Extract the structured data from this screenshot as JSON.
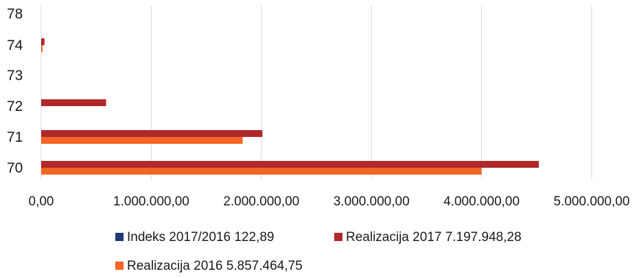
{
  "chart_data": {
    "type": "bar",
    "orientation": "horizontal",
    "categories": [
      "70",
      "71",
      "72",
      "73",
      "74",
      "78"
    ],
    "series": [
      {
        "name": "Indeks 2017/2016 122,89",
        "color": "#1f3a78",
        "values": [
          null,
          null,
          null,
          null,
          null,
          null
        ]
      },
      {
        "name": "Realizacija 2017 7.197.948,28",
        "color": "#b0282a",
        "values": [
          4520000,
          2010000,
          590000,
          0,
          30000,
          0
        ]
      },
      {
        "name": "Realizacija 2016 5.857.464,75",
        "color": "#f26522",
        "values": [
          4000000,
          1830000,
          0,
          0,
          12000,
          0
        ]
      }
    ],
    "xticks": [
      "0,00",
      "1.000.000,00",
      "2.000.000,00",
      "3.000.000,00",
      "4.000.000,00",
      "5.000.000,00"
    ],
    "xlim": [
      0,
      5000000
    ],
    "grid": true,
    "legend_position": "bottom",
    "title": "",
    "xlabel": "",
    "ylabel": ""
  }
}
